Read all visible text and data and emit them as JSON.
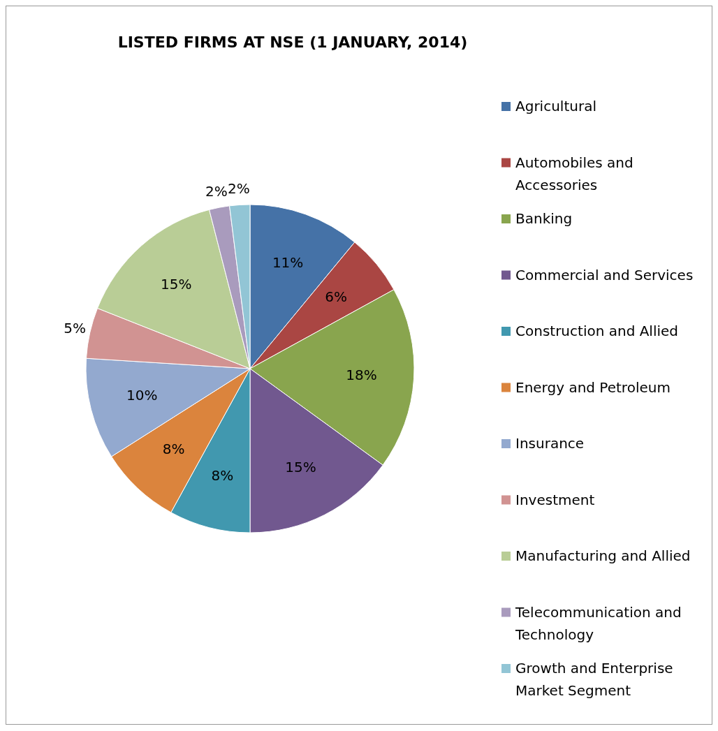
{
  "chart_data": {
    "type": "pie",
    "title": "LISTED FIRMS AT NSE (1 JANUARY, 2014)",
    "categories": [
      "Agricultural",
      "Automobiles and Accessories",
      "Banking",
      "Commercial and Services",
      "Construction and Allied",
      "Energy and Petroleum",
      "Insurance",
      "Investment",
      "Manufacturing and Allied",
      "Telecommunication and Technology",
      "Growth and Enterprise Market Segment"
    ],
    "values": [
      11,
      6,
      18,
      15,
      8,
      8,
      10,
      5,
      15,
      2,
      2
    ],
    "value_labels": [
      "11%",
      "6%",
      "18%",
      "15%",
      "8%",
      "8%",
      "10%",
      "5%",
      "15%",
      "2%",
      "2%"
    ],
    "colors": [
      "#4572a7",
      "#aa4643",
      "#89a54e",
      "#71588f",
      "#4198af",
      "#db843d",
      "#93a9cf",
      "#d19392",
      "#b9cd96",
      "#a99bbd",
      "#92c5d5"
    ],
    "legend": "right"
  }
}
